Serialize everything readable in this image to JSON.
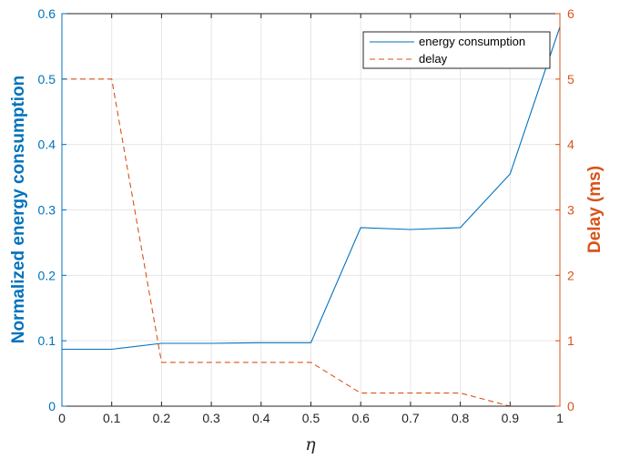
{
  "chart_data": {
    "type": "line",
    "xlabel": "η",
    "ylabel_left": "Normalized energy consumption",
    "ylabel_right": "Delay (ms)",
    "xlim": [
      0,
      1
    ],
    "ylim_left": [
      0,
      0.6
    ],
    "ylim_right": [
      0,
      6
    ],
    "x_ticks": [
      "0",
      "0.1",
      "0.2",
      "0.3",
      "0.4",
      "0.5",
      "0.6",
      "0.7",
      "0.8",
      "0.9",
      "1"
    ],
    "y_left_ticks": [
      "0",
      "0.1",
      "0.2",
      "0.3",
      "0.4",
      "0.5",
      "0.6"
    ],
    "y_right_ticks": [
      "0",
      "1",
      "2",
      "3",
      "4",
      "5",
      "6"
    ],
    "grid": true,
    "legend_position": "top-right",
    "series": [
      {
        "name": "energy consumption",
        "axis": "left",
        "color": "#0072BD",
        "style": "solid",
        "x": [
          0,
          0.1,
          0.2,
          0.3,
          0.4,
          0.5,
          0.6,
          0.7,
          0.8,
          0.9,
          1.0
        ],
        "y": [
          0.087,
          0.087,
          0.096,
          0.096,
          0.097,
          0.097,
          0.273,
          0.27,
          0.273,
          0.355,
          0.58
        ]
      },
      {
        "name": "delay",
        "axis": "right",
        "color": "#D95319",
        "style": "dashed",
        "x": [
          0,
          0.1,
          0.2,
          0.3,
          0.4,
          0.5,
          0.6,
          0.7,
          0.8,
          0.9,
          1.0
        ],
        "y": [
          5.0,
          5.0,
          0.67,
          0.67,
          0.67,
          0.67,
          0.2,
          0.2,
          0.2,
          0.0,
          0.0
        ]
      }
    ]
  }
}
